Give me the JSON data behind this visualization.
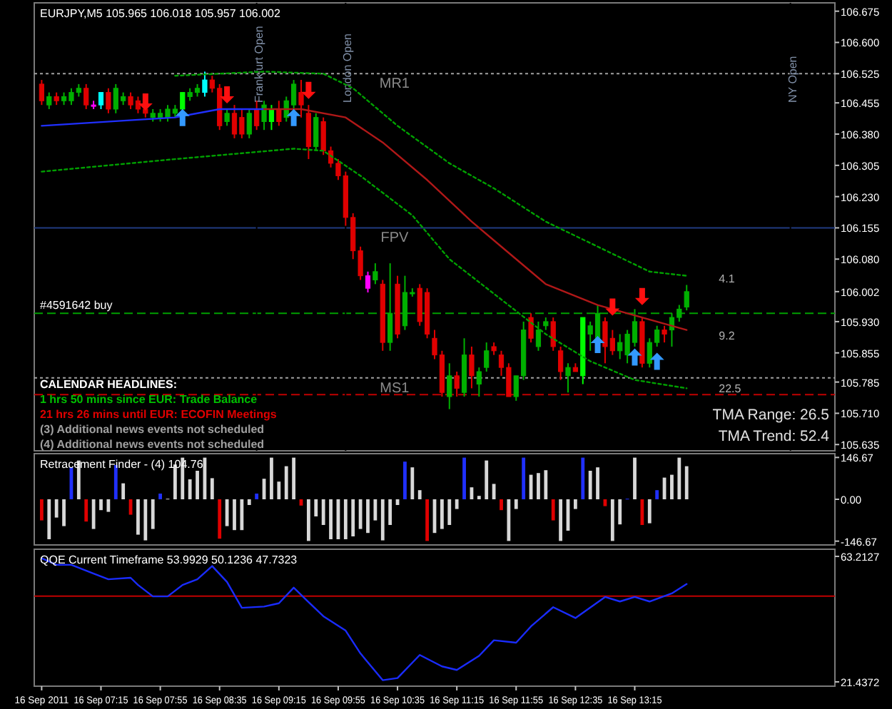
{
  "chart_data": [
    {
      "type": "candlestick",
      "title": "EURJPY,M5 105.965 106.018 105.957 106.002",
      "x": [
        "2011-09-16T06:35",
        "2011-09-16T06:40",
        "2011-09-16T06:45",
        "2011-09-16T06:50",
        "2011-09-16T06:55",
        "2011-09-16T07:00",
        "2011-09-16T07:05",
        "2011-09-16T07:10",
        "2011-09-16T07:15",
        "2011-09-16T07:20",
        "2011-09-16T07:25",
        "2011-09-16T07:30",
        "2011-09-16T07:35",
        "2011-09-16T07:40",
        "2011-09-16T07:45",
        "2011-09-16T07:50",
        "2011-09-16T07:55",
        "2011-09-16T08:00",
        "2011-09-16T08:05",
        "2011-09-16T08:10",
        "2011-09-16T08:15",
        "2011-09-16T08:20",
        "2011-09-16T08:25",
        "2011-09-16T08:30",
        "2011-09-16T08:35",
        "2011-09-16T08:40",
        "2011-09-16T08:45",
        "2011-09-16T08:50",
        "2011-09-16T08:55",
        "2011-09-16T09:00",
        "2011-09-16T09:05",
        "2011-09-16T09:10",
        "2011-09-16T09:15",
        "2011-09-16T09:20",
        "2011-09-16T09:25",
        "2011-09-16T09:30",
        "2011-09-16T09:35",
        "2011-09-16T09:40",
        "2011-09-16T09:45",
        "2011-09-16T09:50",
        "2011-09-16T09:55",
        "2011-09-16T10:00",
        "2011-09-16T10:05",
        "2011-09-16T10:10",
        "2011-09-16T10:15",
        "2011-09-16T10:20",
        "2011-09-16T10:25",
        "2011-09-16T10:30",
        "2011-09-16T10:35",
        "2011-09-16T10:40",
        "2011-09-16T10:45",
        "2011-09-16T10:50",
        "2011-09-16T10:55",
        "2011-09-16T11:00",
        "2011-09-16T11:05",
        "2011-09-16T11:10",
        "2011-09-16T11:15",
        "2011-09-16T11:20",
        "2011-09-16T11:25",
        "2011-09-16T11:30",
        "2011-09-16T11:35",
        "2011-09-16T11:40",
        "2011-09-16T11:45",
        "2011-09-16T11:50",
        "2011-09-16T11:55",
        "2011-09-16T12:00",
        "2011-09-16T12:05",
        "2011-09-16T12:10",
        "2011-09-16T12:15",
        "2011-09-16T12:20",
        "2011-09-16T12:25",
        "2011-09-16T12:30",
        "2011-09-16T12:35",
        "2011-09-16T12:40",
        "2011-09-16T12:45",
        "2011-09-16T12:50",
        "2011-09-16T12:55",
        "2011-09-16T13:00",
        "2011-09-16T13:05",
        "2011-09-16T13:10",
        "2011-09-16T13:15",
        "2011-09-16T13:20",
        "2011-09-16T13:25",
        "2011-09-16T13:30",
        "2011-09-16T13:35",
        "2011-09-16T13:40",
        "2011-09-16T13:45",
        "2011-09-16T13:50"
      ],
      "ohlc": [
        [
          106.5,
          106.51,
          106.45,
          106.46
        ],
        [
          106.45,
          106.48,
          106.44,
          106.47
        ],
        [
          106.47,
          106.48,
          106.45,
          106.46
        ],
        [
          106.46,
          106.48,
          106.45,
          106.47
        ],
        [
          106.46,
          106.49,
          106.45,
          106.48
        ],
        [
          106.48,
          106.5,
          106.47,
          106.49
        ],
        [
          106.49,
          106.5,
          106.44,
          106.45
        ],
        [
          106.45,
          106.46,
          106.44,
          106.45
        ],
        [
          106.45,
          106.48,
          106.44,
          106.48
        ],
        [
          106.48,
          106.49,
          106.43,
          106.44
        ],
        [
          106.44,
          106.5,
          106.43,
          106.49
        ],
        [
          106.46,
          106.48,
          106.45,
          106.47
        ],
        [
          106.47,
          106.48,
          106.44,
          106.45
        ],
        [
          106.46,
          106.47,
          106.43,
          106.44
        ],
        [
          106.44,
          106.45,
          106.42,
          106.43
        ],
        [
          106.42,
          106.44,
          106.41,
          106.43
        ],
        [
          106.42,
          106.44,
          106.41,
          106.43
        ],
        [
          106.42,
          106.45,
          106.41,
          106.44
        ],
        [
          106.43,
          106.45,
          106.42,
          106.44
        ],
        [
          106.44,
          106.48,
          106.43,
          106.48
        ],
        [
          106.47,
          106.49,
          106.46,
          106.48
        ],
        [
          106.48,
          106.5,
          106.47,
          106.49
        ],
        [
          106.48,
          106.53,
          106.47,
          106.51
        ],
        [
          106.51,
          106.52,
          106.48,
          106.49
        ],
        [
          106.49,
          106.5,
          106.39,
          106.4
        ],
        [
          106.41,
          106.44,
          106.4,
          106.43
        ],
        [
          106.43,
          106.45,
          106.37,
          106.38
        ],
        [
          106.42,
          106.44,
          106.37,
          106.38
        ],
        [
          106.38,
          106.44,
          106.37,
          106.43
        ],
        [
          106.44,
          106.46,
          106.39,
          106.4
        ],
        [
          106.41,
          106.46,
          106.39,
          106.45
        ],
        [
          106.41,
          106.45,
          106.39,
          106.44
        ],
        [
          106.44,
          106.46,
          106.4,
          106.41
        ],
        [
          106.42,
          106.47,
          106.41,
          106.46
        ],
        [
          106.45,
          106.51,
          106.44,
          106.5
        ],
        [
          106.48,
          106.51,
          106.42,
          106.45
        ],
        [
          106.43,
          106.45,
          106.32,
          106.35
        ],
        [
          106.35,
          106.43,
          106.34,
          106.42
        ],
        [
          106.41,
          106.42,
          106.33,
          106.34
        ],
        [
          106.34,
          106.35,
          106.3,
          106.31
        ],
        [
          106.31,
          106.32,
          106.27,
          106.28
        ],
        [
          106.28,
          106.29,
          106.16,
          106.18
        ],
        [
          106.18,
          106.19,
          106.08,
          106.1
        ],
        [
          106.1,
          106.11,
          106.03,
          106.04
        ],
        [
          106.04,
          106.05,
          106.0,
          106.01
        ],
        [
          106.03,
          106.07,
          106.02,
          106.05
        ],
        [
          106.02,
          106.03,
          105.86,
          105.88
        ],
        [
          105.88,
          106.07,
          105.86,
          105.95
        ],
        [
          106.02,
          106.04,
          105.89,
          105.9
        ],
        [
          105.92,
          106.04,
          105.91,
          106.0
        ],
        [
          106.0,
          106.01,
          105.99,
          106.0
        ],
        [
          106.01,
          106.02,
          105.92,
          105.93
        ],
        [
          106.0,
          106.01,
          105.89,
          105.9
        ],
        [
          105.89,
          105.91,
          105.84,
          105.85
        ],
        [
          105.85,
          105.86,
          105.75,
          105.76
        ],
        [
          105.75,
          105.83,
          105.72,
          105.8
        ],
        [
          105.8,
          105.81,
          105.75,
          105.77
        ],
        [
          105.76,
          105.89,
          105.75,
          105.85
        ],
        [
          105.85,
          105.87,
          105.77,
          105.8
        ],
        [
          105.78,
          105.82,
          105.75,
          105.81
        ],
        [
          105.82,
          105.88,
          105.81,
          105.86
        ],
        [
          105.87,
          105.88,
          105.85,
          105.86
        ],
        [
          105.85,
          105.86,
          105.8,
          105.82
        ],
        [
          105.82,
          105.83,
          105.75,
          105.75
        ],
        [
          105.75,
          105.8,
          105.74,
          105.8
        ],
        [
          105.8,
          105.93,
          105.79,
          105.91
        ],
        [
          105.94,
          105.95,
          105.88,
          105.89
        ],
        [
          105.87,
          105.93,
          105.86,
          105.91
        ],
        [
          105.92,
          105.94,
          105.91,
          105.93
        ],
        [
          105.93,
          105.94,
          105.86,
          105.87
        ],
        [
          105.86,
          105.87,
          105.79,
          105.81
        ],
        [
          105.8,
          105.83,
          105.76,
          105.82
        ],
        [
          105.82,
          105.83,
          105.81,
          105.81
        ],
        [
          105.8,
          105.94,
          105.78,
          105.94
        ],
        [
          105.9,
          105.93,
          105.86,
          105.92
        ],
        [
          105.89,
          105.97,
          105.885,
          105.95
        ],
        [
          105.93,
          105.94,
          105.83,
          105.87
        ],
        [
          105.89,
          105.91,
          105.85,
          105.86
        ],
        [
          105.86,
          105.9,
          105.84,
          105.88
        ],
        [
          105.85,
          105.91,
          105.83,
          105.9
        ],
        [
          105.88,
          105.96,
          105.87,
          105.93
        ],
        [
          105.93,
          105.94,
          105.82,
          105.83
        ],
        [
          105.83,
          105.89,
          105.82,
          105.88
        ],
        [
          105.88,
          105.92,
          105.87,
          105.91
        ],
        [
          105.91,
          105.92,
          105.88,
          105.9
        ],
        [
          105.91,
          105.95,
          105.87,
          105.94
        ],
        [
          105.94,
          105.97,
          105.93,
          105.96
        ],
        [
          105.965,
          106.018,
          105.957,
          106.002
        ]
      ],
      "colors": [
        "#e00000",
        "#00b000",
        "#e00000",
        "#00b000",
        "#00b000",
        "#00b000",
        "#e00000",
        "#ff00ff",
        "#00ffff",
        "#e00000",
        "#00b000",
        "#00b000",
        "#e00000",
        "#e00000",
        "#e00000",
        "#00b000",
        "#00b000",
        "#00b000",
        "#00b000",
        "#00ff00",
        "#00b000",
        "#00b000",
        "#00ffff",
        "#e00000",
        "#e00000",
        "#00b000",
        "#e00000",
        "#e00000",
        "#00b000",
        "#e00000",
        "#00b000",
        "#00ff00",
        "#e00000",
        "#00b000",
        "#00b000",
        "#e00000",
        "#e00000",
        "#00b000",
        "#e00000",
        "#e00000",
        "#e00000",
        "#e00000",
        "#e00000",
        "#e00000",
        "#ff00ff",
        "#00b000",
        "#e00000",
        "#00b000",
        "#e00000",
        "#00b000",
        "#00b000",
        "#e00000",
        "#e00000",
        "#e00000",
        "#e00000",
        "#00b000",
        "#e00000",
        "#00b000",
        "#e00000",
        "#00b000",
        "#00b000",
        "#e00000",
        "#e00000",
        "#e00000",
        "#00b000",
        "#00b000",
        "#e00000",
        "#00b000",
        "#00b000",
        "#e00000",
        "#e00000",
        "#00b000",
        "#e00000",
        "#00ff00",
        "#00b000",
        "#00b000",
        "#e00000",
        "#e00000",
        "#00b000",
        "#00b000",
        "#00b000",
        "#e00000",
        "#00b000",
        "#00b000",
        "#e00000",
        "#00b000",
        "#00b000",
        "#00b000"
      ],
      "xlim": [
        "2011-09-16T06:30",
        "2011-09-16T15:30"
      ],
      "ylim": [
        105.62,
        106.695
      ],
      "yticks": [
        106.675,
        {
          "value": 106.6,
          "label": "106.600"
        },
        106.525,
        106.455,
        {
          "value": 106.38,
          "label": "106.380"
        },
        106.305,
        {
          "value": 106.23,
          "label": "106.230"
        },
        106.155,
        {
          "value": 106.08,
          "label": "106.080"
        },
        106.002,
        {
          "value": 105.93,
          "label": "105.930"
        },
        105.855,
        105.785,
        {
          "value": 105.71,
          "label": "105.710"
        },
        105.635
      ],
      "tick_labels": "y",
      "series": [
        {
          "type": "line",
          "color": "#2030ff",
          "x": [
            "2011-09-16T06:35",
            "2011-09-16T08:05",
            "2011-09-16T08:35",
            "2011-09-16T09:05"
          ],
          "values": [
            106.4,
            106.42,
            106.44,
            106.44
          ]
        },
        {
          "type": "line",
          "color": "#b01818",
          "x": [
            "2011-09-16T09:05",
            "2011-09-16T09:30",
            "2011-09-16T10:00",
            "2011-09-16T10:25",
            "2011-09-16T10:55",
            "2011-09-16T11:25",
            "2011-09-16T11:45",
            "2011-09-16T12:15",
            "2011-09-16T12:50",
            "2011-09-16T13:20",
            "2011-09-16T13:50"
          ],
          "values": [
            106.44,
            106.44,
            106.42,
            106.36,
            106.27,
            106.17,
            106.11,
            106.02,
            105.97,
            105.94,
            105.91
          ]
        },
        {
          "type": "line",
          "color": "#00a000",
          "line_style": "dotted",
          "x": [
            "2011-09-16T08:05",
            "2011-09-16T09:05",
            "2011-09-16T09:45",
            "2011-09-16T10:05",
            "2011-09-16T10:35",
            "2011-09-16T11:10",
            "2011-09-16T11:40",
            "2011-09-16T12:15",
            "2011-09-16T12:50",
            "2011-09-16T13:25",
            "2011-09-16T13:50"
          ],
          "values": [
            106.52,
            106.53,
            106.525,
            106.49,
            106.4,
            106.31,
            106.25,
            106.17,
            106.11,
            106.05,
            106.04
          ]
        },
        {
          "type": "line",
          "color": "#00a000",
          "line_style": "dotted",
          "x": [
            "2011-09-16T06:35",
            "2011-09-16T08:05",
            "2011-09-16T09:25",
            "2011-09-16T09:45",
            "2011-09-16T10:10",
            "2011-09-16T10:45",
            "2011-09-16T11:10",
            "2011-09-16T12:15",
            "2011-09-16T12:45",
            "2011-09-16T13:15",
            "2011-09-16T13:50"
          ],
          "values": [
            106.29,
            106.32,
            106.345,
            106.34,
            106.28,
            106.185,
            106.08,
            105.9,
            105.835,
            105.79,
            105.77
          ]
        },
        {
          "type": "scatter",
          "marker": "triangle",
          "color": "#ff1010",
          "x": [
            "2011-09-16T07:45",
            "2011-09-16T08:40",
            "2011-09-16T09:35",
            "2011-09-16T13:00",
            "2011-09-16T13:20"
          ],
          "values": [
            106.457,
            106.474,
            106.485,
            105.965,
            105.99
          ]
        },
        {
          "type": "scatter",
          "marker": "triangle",
          "color": "#3399ff",
          "x": [
            "2011-09-16T08:10",
            "2011-09-16T09:25",
            "2011-09-16T12:50",
            "2011-09-16T13:15",
            "2011-09-16T13:30"
          ],
          "values": [
            106.42,
            106.42,
            105.875,
            105.845,
            105.835
          ]
        }
      ],
      "ref_lines": [
        {
          "axis": "y",
          "value": 106.525,
          "label": "MR1",
          "color": "#a0a0a0",
          "line_style": "dotted"
        },
        {
          "axis": "y",
          "value": 106.155,
          "label": "FPV",
          "color": "#203a80",
          "line_style": "solid"
        },
        {
          "axis": "y",
          "value": 105.795,
          "label": "MS1",
          "color": "#a0a0a0",
          "line_style": "dotted"
        },
        {
          "axis": "y",
          "value": 105.95,
          "label": "#4591642 buy",
          "color": "#00a000",
          "line_style": "dashed"
        },
        {
          "axis": "y",
          "value": 105.755,
          "color": "#c00000",
          "line_style": "dashed"
        },
        {
          "axis": "x",
          "value": "2011-09-16T09:00",
          "label": "Frankfurt Open",
          "color": "#000000"
        },
        {
          "axis": "x",
          "value": "2011-09-16T10:00",
          "label": "London Open",
          "color": "#000000"
        },
        {
          "axis": "x",
          "value": "2011-09-16T15:00",
          "label": "NY Open",
          "color": "#000000"
        }
      ],
      "annotations": [
        "CALENDAR HEADLINES:",
        "1 hrs 50 mins since EUR: Trade Balance",
        "21 hrs 26 mins until EUR: ECOFIN Meetings",
        "(3)  Additional news events not scheduled",
        "(4)  Additional news events not scheduled",
        "TMA Range: 26.5",
        "TMA Trend: 52.4",
        "4.1",
        "9.2",
        "22.5"
      ]
    },
    {
      "type": "bar",
      "title": "Retracement Finder - (4) 104.76",
      "x": [
        "2011-09-16T06:35",
        "2011-09-16T06:40",
        "2011-09-16T06:45",
        "2011-09-16T06:50",
        "2011-09-16T06:55",
        "2011-09-16T07:00",
        "2011-09-16T07:05",
        "2011-09-16T07:10",
        "2011-09-16T07:15",
        "2011-09-16T07:20",
        "2011-09-16T07:25",
        "2011-09-16T07:30",
        "2011-09-16T07:35",
        "2011-09-16T07:40",
        "2011-09-16T07:45",
        "2011-09-16T07:50",
        "2011-09-16T07:55",
        "2011-09-16T08:00",
        "2011-09-16T08:05",
        "2011-09-16T08:10",
        "2011-09-16T08:15",
        "2011-09-16T08:20",
        "2011-09-16T08:25",
        "2011-09-16T08:30",
        "2011-09-16T08:35",
        "2011-09-16T08:40",
        "2011-09-16T08:45",
        "2011-09-16T08:50",
        "2011-09-16T08:55",
        "2011-09-16T09:00",
        "2011-09-16T09:05",
        "2011-09-16T09:10",
        "2011-09-16T09:15",
        "2011-09-16T09:20",
        "2011-09-16T09:25",
        "2011-09-16T09:30",
        "2011-09-16T09:35",
        "2011-09-16T09:40",
        "2011-09-16T09:45",
        "2011-09-16T09:50",
        "2011-09-16T09:55",
        "2011-09-16T10:00",
        "2011-09-16T10:05",
        "2011-09-16T10:10",
        "2011-09-16T10:15",
        "2011-09-16T10:20",
        "2011-09-16T10:25",
        "2011-09-16T10:30",
        "2011-09-16T10:35",
        "2011-09-16T10:40",
        "2011-09-16T10:45",
        "2011-09-16T10:50",
        "2011-09-16T10:55",
        "2011-09-16T11:00",
        "2011-09-16T11:05",
        "2011-09-16T11:10",
        "2011-09-16T11:15",
        "2011-09-16T11:20",
        "2011-09-16T11:25",
        "2011-09-16T11:30",
        "2011-09-16T11:35",
        "2011-09-16T11:40",
        "2011-09-16T11:45",
        "2011-09-16T11:50",
        "2011-09-16T11:55",
        "2011-09-16T12:00",
        "2011-09-16T12:05",
        "2011-09-16T12:10",
        "2011-09-16T12:15",
        "2011-09-16T12:20",
        "2011-09-16T12:25",
        "2011-09-16T12:30",
        "2011-09-16T12:35",
        "2011-09-16T12:40",
        "2011-09-16T12:45",
        "2011-09-16T12:50",
        "2011-09-16T12:55",
        "2011-09-16T13:00",
        "2011-09-16T13:05",
        "2011-09-16T13:10",
        "2011-09-16T13:15",
        "2011-09-16T13:20",
        "2011-09-16T13:25",
        "2011-09-16T13:30",
        "2011-09-16T13:35",
        "2011-09-16T13:40",
        "2011-09-16T13:45",
        "2011-09-16T13:50"
      ],
      "values": [
        -74,
        -140,
        -64,
        -94,
        112,
        136,
        -78,
        -104,
        -38,
        -44,
        120,
        56,
        -54,
        -124,
        -144,
        -104,
        20,
        2,
        122,
        146,
        70,
        100,
        146,
        74,
        -138,
        -94,
        -108,
        -108,
        -20,
        20,
        72,
        146,
        62,
        116,
        146,
        -22,
        -146,
        -60,
        -90,
        -140,
        -140,
        -140,
        -130,
        -104,
        -118,
        -74,
        -144,
        -90,
        -20,
        132,
        112,
        32,
        -146,
        -118,
        -104,
        -90,
        -34,
        146,
        42,
        12,
        136,
        54,
        -38,
        -146,
        -34,
        146,
        86,
        92,
        102,
        -74,
        -146,
        -110,
        -34,
        146,
        100,
        112,
        -24,
        -146,
        -88,
        2,
        146,
        -90,
        -84,
        32,
        76,
        86,
        146,
        116
      ],
      "colors": [
        "#e00000",
        "#d8d8d8",
        "#d8d8d8",
        "#d8d8d8",
        "#2030ff",
        "#d8d8d8",
        "#e00000",
        "#d8d8d8",
        "#d8d8d8",
        "#d8d8d8",
        "#2030ff",
        "#d8d8d8",
        "#e00000",
        "#d8d8d8",
        "#d8d8d8",
        "#d8d8d8",
        "#2030ff",
        "#d8d8d8",
        "#d8d8d8",
        "#d8d8d8",
        "#d8d8d8",
        "#d8d8d8",
        "#d8d8d8",
        "#d8d8d8",
        "#e00000",
        "#d8d8d8",
        "#d8d8d8",
        "#d8d8d8",
        "#d8d8d8",
        "#2030ff",
        "#d8d8d8",
        "#d8d8d8",
        "#d8d8d8",
        "#d8d8d8",
        "#d8d8d8",
        "#e00000",
        "#d8d8d8",
        "#d8d8d8",
        "#d8d8d8",
        "#d8d8d8",
        "#d8d8d8",
        "#d8d8d8",
        "#d8d8d8",
        "#d8d8d8",
        "#d8d8d8",
        "#d8d8d8",
        "#d8d8d8",
        "#d8d8d8",
        "#d8d8d8",
        "#2030ff",
        "#d8d8d8",
        "#d8d8d8",
        "#e00000",
        "#d8d8d8",
        "#d8d8d8",
        "#d8d8d8",
        "#d8d8d8",
        "#2030ff",
        "#d8d8d8",
        "#d8d8d8",
        "#d8d8d8",
        "#d8d8d8",
        "#e00000",
        "#d8d8d8",
        "#d8d8d8",
        "#2030ff",
        "#d8d8d8",
        "#d8d8d8",
        "#d8d8d8",
        "#e00000",
        "#d8d8d8",
        "#d8d8d8",
        "#d8d8d8",
        "#2030ff",
        "#d8d8d8",
        "#d8d8d8",
        "#e00000",
        "#d8d8d8",
        "#d8d8d8",
        "#2030ff",
        "#d8d8d8",
        "#e00000",
        "#d8d8d8",
        "#2030ff",
        "#d8d8d8",
        "#d8d8d8",
        "#d8d8d8",
        "#d8d8d8"
      ],
      "xlim": [
        "2011-09-16T06:30",
        "2011-09-16T15:30"
      ],
      "ylim": [
        -160,
        160
      ],
      "yticks": [
        146.67,
        {
          "value": 0,
          "label": "0.00"
        },
        -146.67
      ],
      "tick_labels": "y"
    },
    {
      "type": "line",
      "title": "QQE Current Timeframe 53.9929 50.1236 47.7323",
      "series": [
        {
          "color": "#1a2cff",
          "x": [
            "2011-09-16T06:35",
            "2011-09-16T06:45",
            "2011-09-16T06:55",
            "2011-09-16T07:10",
            "2011-09-16T07:20",
            "2011-09-16T07:35",
            "2011-09-16T07:40",
            "2011-09-16T07:50",
            "2011-09-16T08:00",
            "2011-09-16T08:10",
            "2011-09-16T08:20",
            "2011-09-16T08:30",
            "2011-09-16T08:40",
            "2011-09-16T08:50",
            "2011-09-16T09:05",
            "2011-09-16T09:15",
            "2011-09-16T09:25",
            "2011-09-16T09:35",
            "2011-09-16T09:45",
            "2011-09-16T10:00",
            "2011-09-16T10:10",
            "2011-09-16T10:25",
            "2011-09-16T10:35",
            "2011-09-16T10:50",
            "2011-09-16T11:05",
            "2011-09-16T11:15",
            "2011-09-16T11:30",
            "2011-09-16T11:40",
            "2011-09-16T11:55",
            "2011-09-16T12:05",
            "2011-09-16T12:20",
            "2011-09-16T12:35",
            "2011-09-16T12:55",
            "2011-09-16T13:05",
            "2011-09-16T13:15",
            "2011-09-16T13:25",
            "2011-09-16T13:40",
            "2011-09-16T13:50"
          ],
          "values": [
            62.6,
            60.4,
            60.4,
            57.5,
            55.6,
            56.1,
            53.7,
            49.9,
            49.9,
            53.7,
            55.6,
            60.0,
            54.7,
            46.1,
            46.5,
            47.6,
            52.8,
            48.0,
            43.3,
            38.5,
            30.9,
            22.0,
            22.7,
            30.4,
            26.6,
            25.4,
            30.1,
            35.3,
            34.5,
            39.9,
            46.3,
            42.7,
            49.7,
            48.2,
            49.7,
            48.2,
            50.9,
            54.0
          ]
        }
      ],
      "ref_lines": [
        {
          "axis": "y",
          "value": 50,
          "color": "#c00000",
          "line_style": "solid"
        }
      ],
      "xlim": [
        "2011-09-16T06:30",
        "2011-09-16T15:30"
      ],
      "ylim": [
        20.0,
        65.6
      ],
      "yticks": [
        63.2127,
        21.4372
      ],
      "xticks": [
        {
          "value": "2011-09-16T06:35",
          "label": "16 Sep 2011"
        },
        {
          "value": "2011-09-16T07:15",
          "label": "16 Sep 07:15"
        },
        {
          "value": "2011-09-16T07:55",
          "label": "16 Sep 07:55"
        },
        {
          "value": "2011-09-16T08:35",
          "label": "16 Sep 08:35"
        },
        {
          "value": "2011-09-16T09:15",
          "label": "16 Sep 09:15"
        },
        {
          "value": "2011-09-16T09:55",
          "label": "16 Sep 09:55"
        },
        {
          "value": "2011-09-16T10:35",
          "label": "16 Sep 10:35"
        },
        {
          "value": "2011-09-16T11:15",
          "label": "16 Sep 11:15"
        },
        {
          "value": "2011-09-16T11:55",
          "label": "16 Sep 11:55"
        },
        {
          "value": "2011-09-16T12:35",
          "label": "16 Sep 12:35"
        },
        {
          "value": "2011-09-16T13:15",
          "label": "16 Sep 13:15"
        }
      ]
    }
  ]
}
